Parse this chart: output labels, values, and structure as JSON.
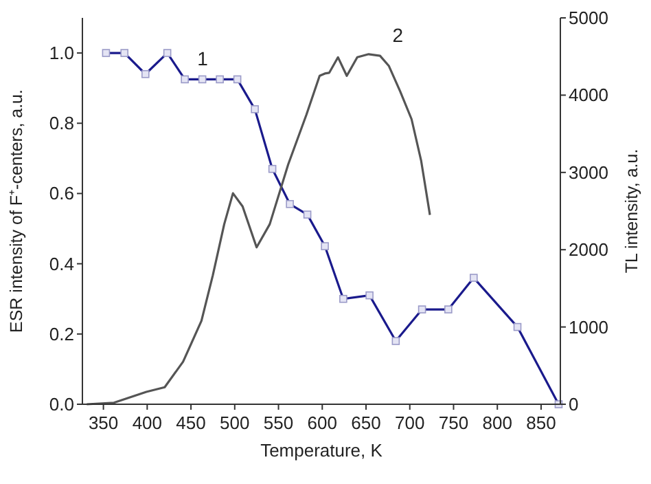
{
  "chart_data": {
    "type": "line",
    "xlabel": "Temperature, K",
    "ylabel": "ESR intensity of F⁺-centers, a.u.",
    "y2label": "TL intensity, a.u.",
    "xlim": [
      326,
      872
    ],
    "xticks": [
      350,
      400,
      450,
      500,
      550,
      600,
      650,
      700,
      750,
      800,
      850
    ],
    "ylim": [
      0,
      1.1
    ],
    "yticks": [
      {
        "value": 0,
        "label": "0.0"
      },
      {
        "value": 0.2,
        "label": "0.2"
      },
      {
        "value": 0.4,
        "label": "0.4"
      },
      {
        "value": 0.6,
        "label": "0.6"
      },
      {
        "value": 0.8,
        "label": "0.8"
      },
      {
        "value": 1,
        "label": "1.0"
      }
    ],
    "y2lim": [
      0,
      5000
    ],
    "y2ticks": [
      0,
      1000,
      2000,
      3000,
      4000,
      5000
    ],
    "grid": false,
    "series": [
      {
        "name": "1",
        "marker": "square",
        "color": "#1a1a8c",
        "x": [
          353,
          374,
          398,
          423,
          443,
          463,
          483,
          503,
          523,
          543,
          563,
          583,
          603,
          624,
          654,
          684,
          714,
          744,
          773,
          823,
          870
        ],
        "values": [
          1.0,
          1.0,
          0.94,
          1.0,
          0.925,
          0.925,
          0.925,
          0.925,
          0.84,
          0.67,
          0.57,
          0.54,
          0.45,
          0.3,
          0.31,
          0.18,
          0.27,
          0.27,
          0.36,
          0.22,
          0
        ]
      },
      {
        "name": "2",
        "marker": "none",
        "axis": "y2",
        "color": "#555555",
        "x": [
          331,
          362,
          399,
          420,
          441,
          462,
          475,
          488,
          498,
          509,
          525,
          540,
          561,
          582,
          597,
          603,
          608,
          618,
          628,
          640,
          653,
          666,
          676,
          689,
          702,
          713,
          723
        ],
        "values": [
          0,
          20,
          160,
          220,
          550,
          1080,
          1670,
          2330,
          2730,
          2560,
          2030,
          2330,
          3100,
          3750,
          4250,
          4280,
          4290,
          4490,
          4250,
          4490,
          4530,
          4510,
          4380,
          4050,
          3690,
          3150,
          2450
        ]
      }
    ]
  }
}
